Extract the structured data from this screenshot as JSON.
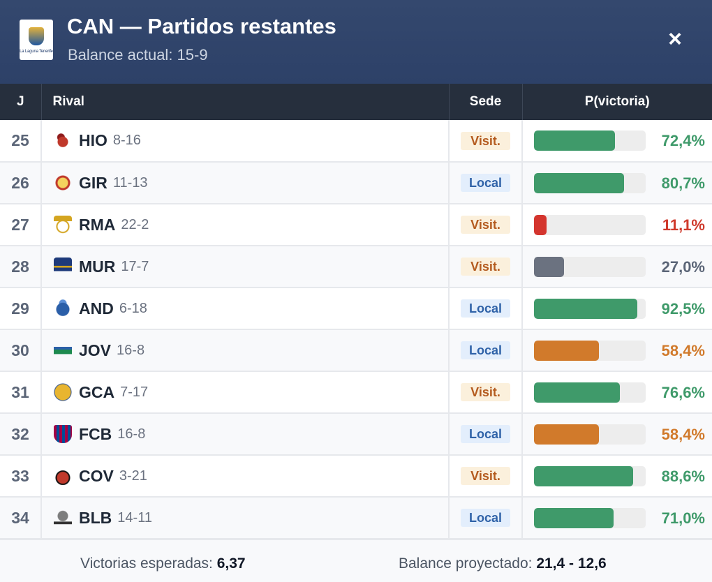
{
  "header": {
    "title": "CAN — Partidos restantes",
    "subtitle": "Balance actual: 15-9",
    "logo_text": "La Laguna Tenerife",
    "close_label": "×"
  },
  "columns": [
    "J",
    "Rival",
    "Sede",
    "P(victoria)"
  ],
  "colors": {
    "green": "#3f9a6a",
    "orange": "#d17a2b",
    "red": "#d4352e",
    "gray": "#6b7280",
    "pct_green": "#3f9a6a",
    "pct_orange": "#d17a2b",
    "pct_red": "#cf3a2c",
    "pct_gray": "#5b6577"
  },
  "games": [
    {
      "j": "25",
      "abbr": "HIO",
      "record": "8-16",
      "sede": "Visit.",
      "home": false,
      "prob": 72.4,
      "pct": "72,4%",
      "tone": "green",
      "icon": "huesca-team-icon"
    },
    {
      "j": "26",
      "abbr": "GIR",
      "record": "11-13",
      "sede": "Local",
      "home": true,
      "prob": 80.7,
      "pct": "80,7%",
      "tone": "green",
      "icon": "girona-team-icon"
    },
    {
      "j": "27",
      "abbr": "RMA",
      "record": "22-2",
      "sede": "Visit.",
      "home": false,
      "prob": 11.1,
      "pct": "11,1%",
      "tone": "red",
      "icon": "real-madrid-team-icon"
    },
    {
      "j": "28",
      "abbr": "MUR",
      "record": "17-7",
      "sede": "Visit.",
      "home": false,
      "prob": 27.0,
      "pct": "27,0%",
      "tone": "gray",
      "icon": "ucam-murcia-team-icon"
    },
    {
      "j": "29",
      "abbr": "AND",
      "record": "6-18",
      "sede": "Local",
      "home": true,
      "prob": 92.5,
      "pct": "92,5%",
      "tone": "green",
      "icon": "andorra-team-icon"
    },
    {
      "j": "30",
      "abbr": "JOV",
      "record": "16-8",
      "sede": "Local",
      "home": true,
      "prob": 58.4,
      "pct": "58,4%",
      "tone": "orange",
      "icon": "joventut-team-icon"
    },
    {
      "j": "31",
      "abbr": "GCA",
      "record": "7-17",
      "sede": "Visit.",
      "home": false,
      "prob": 76.6,
      "pct": "76,6%",
      "tone": "green",
      "icon": "gran-canaria-team-icon"
    },
    {
      "j": "32",
      "abbr": "FCB",
      "record": "16-8",
      "sede": "Local",
      "home": true,
      "prob": 58.4,
      "pct": "58,4%",
      "tone": "orange",
      "icon": "barcelona-team-icon"
    },
    {
      "j": "33",
      "abbr": "COV",
      "record": "3-21",
      "sede": "Visit.",
      "home": false,
      "prob": 88.6,
      "pct": "88,6%",
      "tone": "green",
      "icon": "coviran-granada-team-icon"
    },
    {
      "j": "34",
      "abbr": "BLB",
      "record": "14-11",
      "sede": "Local",
      "home": true,
      "prob": 71.0,
      "pct": "71,0%",
      "tone": "green",
      "icon": "bilbao-team-icon"
    }
  ],
  "footer": {
    "expected_label": "Victorias esperadas:",
    "expected_value": "6,37",
    "projected_label": "Balance proyectado:",
    "projected_value": "21,4 - 12,6"
  }
}
